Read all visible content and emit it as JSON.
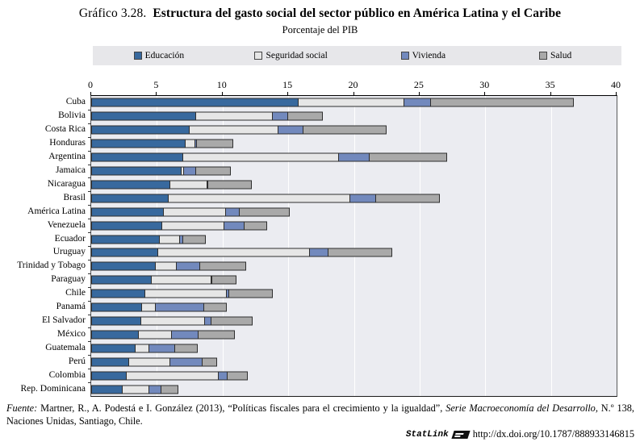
{
  "title": {
    "prefix": "Gráfico 3.28.",
    "main": "Estructura del gasto social del sector público en América Latina y el Caribe"
  },
  "subtitle": "Porcentaje del PIB",
  "colors": {
    "educacion": "#38699e",
    "seguridad_social": "#e6e6e6",
    "vivienda": "#7289bd",
    "salud": "#a9a9a9",
    "segment_border": "#2e2e2e",
    "plot_background": "#ebecf1",
    "legend_background": "#e7e7ea",
    "gridline": "#ffffff"
  },
  "chart_data": {
    "type": "bar",
    "orientation": "horizontal",
    "stacked": true,
    "title": "Estructura del gasto social del sector público en América Latina y el Caribe",
    "unit_label": "Porcentaje del PIB",
    "xlabel": "",
    "ylabel": "",
    "xlim": [
      0,
      40
    ],
    "xticks": [
      0,
      5,
      10,
      15,
      20,
      25,
      30,
      35,
      40
    ],
    "grid": "vertical white gridlines every 5 units",
    "legend_position": "top",
    "categories": [
      "Cuba",
      "Bolivia",
      "Costa Rica",
      "Honduras",
      "Argentina",
      "Jamaica",
      "Nicaragua",
      "Brasil",
      "América Latina",
      "Venezuela",
      "Ecuador",
      "Uruguay",
      "Trinidad y Tobago",
      "Paraguay",
      "Chile",
      "Panamá",
      "El Salvador",
      "México",
      "Guatemala",
      "Perú",
      "Colombia",
      "Rep. Dominicana"
    ],
    "series": [
      {
        "name": "Educación",
        "color": "#38699e",
        "values": [
          15.8,
          8.0,
          7.5,
          7.2,
          7.0,
          6.9,
          6.0,
          5.9,
          5.5,
          5.4,
          5.2,
          5.1,
          4.9,
          4.6,
          4.1,
          3.9,
          3.8,
          3.6,
          3.4,
          2.9,
          2.7,
          2.4
        ]
      },
      {
        "name": "Seguridad social",
        "color": "#e6e6e6",
        "values": [
          8.1,
          5.9,
          6.8,
          0.8,
          11.9,
          0.2,
          2.9,
          13.9,
          4.8,
          4.8,
          1.6,
          11.6,
          1.7,
          4.6,
          6.3,
          1.1,
          4.9,
          2.6,
          1.1,
          3.2,
          7.1,
          2.1
        ]
      },
      {
        "name": "Vivienda",
        "color": "#7289bd",
        "values": [
          2.1,
          1.2,
          2.0,
          0.2,
          2.4,
          1.0,
          0.1,
          2.0,
          1.1,
          1.6,
          0.3,
          1.5,
          1.8,
          0.1,
          0.2,
          3.7,
          0.6,
          2.1,
          2.0,
          2.5,
          0.7,
          1.0
        ]
      },
      {
        "name": "Salud",
        "color": "#a9a9a9",
        "values": [
          10.9,
          2.7,
          6.4,
          2.8,
          6.0,
          2.7,
          3.4,
          4.9,
          3.9,
          1.8,
          1.8,
          4.9,
          3.6,
          1.9,
          3.4,
          1.8,
          3.2,
          2.8,
          1.8,
          1.2,
          1.6,
          1.3
        ]
      }
    ]
  },
  "footer": {
    "source_prefix": "Fuente:",
    "source_part1": " Martner, R., A. Podestá e I. González (2013), “Políticas fiscales para el crecimiento y la igualdad”, ",
    "source_italic": "Serie Macroeconomía del Desarrollo,",
    "source_part2": " N.º 138, Naciones Unidas, Santiago, Chile.",
    "statlink_label": "StatLink",
    "statlink_url": "http://dx.doi.org/10.1787/888933146815"
  }
}
